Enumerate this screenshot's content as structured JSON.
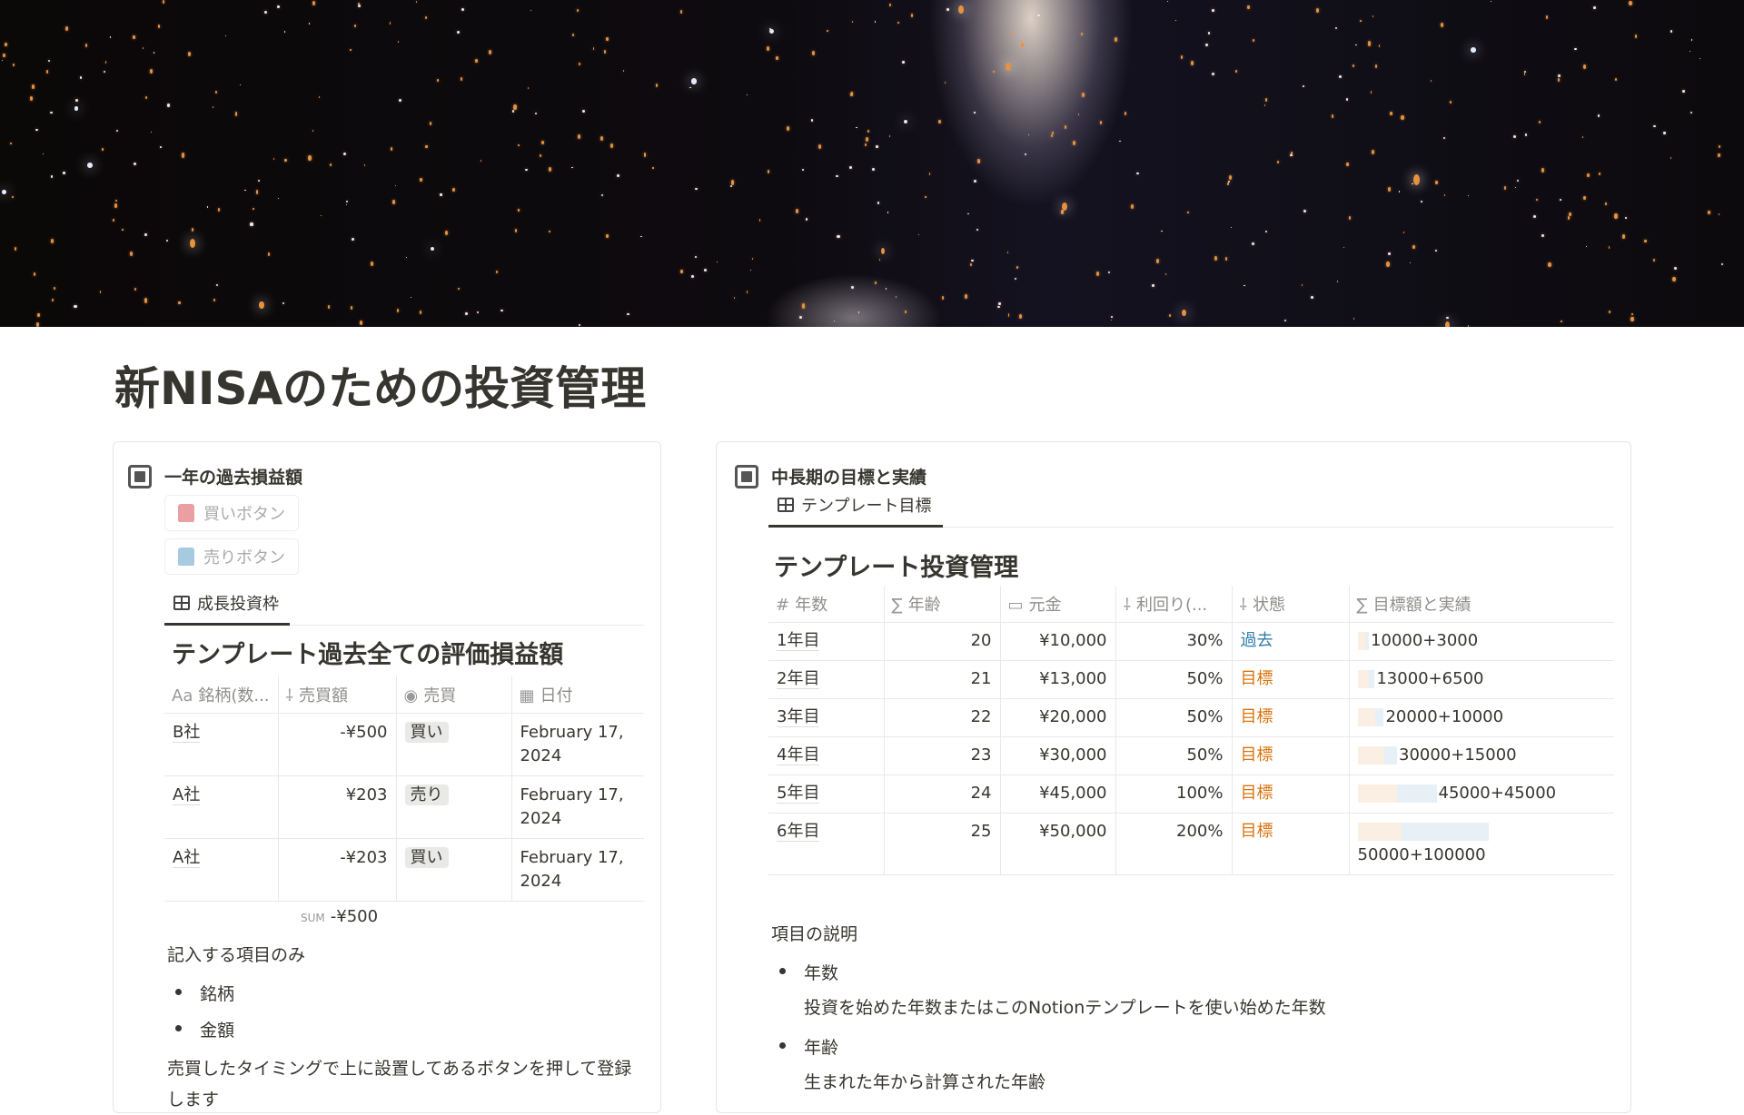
{
  "page": {
    "title": "新NISAのための投資管理"
  },
  "left": {
    "header": "一年の過去損益額",
    "buy_button": "買いボタン",
    "sell_button": "売りボタン",
    "tab": "成長投資枠",
    "db_title": "テンプレート過去全ての評価損益額",
    "columns": [
      {
        "icon": "Aa",
        "label": "銘柄(数..."
      },
      {
        "icon": "number-icon",
        "label": "売買額"
      },
      {
        "icon": "select-icon",
        "label": "売買"
      },
      {
        "icon": "calendar-icon",
        "label": "日付"
      }
    ],
    "rows": [
      {
        "name": "B社",
        "amount": "-¥500",
        "type": "買い",
        "date": "February 17, 2024"
      },
      {
        "name": "A社",
        "amount": "¥203",
        "type": "売り",
        "date": "February 17, 2024"
      },
      {
        "name": "A社",
        "amount": "-¥203",
        "type": "買い",
        "date": "February 17, 2024"
      }
    ],
    "sum_label": "SUM",
    "sum_value": "-¥500",
    "note_heading": "記入する項目のみ",
    "bullets": [
      "銘柄",
      "金額"
    ],
    "note": "売買したタイミングで上に設置してあるボタンを押して登録します"
  },
  "right": {
    "header": "中長期の目標と実績",
    "tab": "テンプレート目標",
    "db_title": "テンプレート投資管理",
    "columns": [
      {
        "icon": "#",
        "label": "年数"
      },
      {
        "icon": "∑",
        "label": "年齢"
      },
      {
        "icon": "money-icon",
        "label": "元金"
      },
      {
        "icon": "number-icon",
        "label": "利回り(..."
      },
      {
        "icon": "number-icon",
        "label": "状態"
      },
      {
        "icon": "∑",
        "label": "目標額と実績"
      }
    ],
    "rows": [
      {
        "year": "1年目",
        "age": "20",
        "principal": "¥10,000",
        "rate": "30%",
        "status": "過去",
        "goal": "10000+3000",
        "p": 10000,
        "g": 3000
      },
      {
        "year": "2年目",
        "age": "21",
        "principal": "¥13,000",
        "rate": "50%",
        "status": "目標",
        "goal": "13000+6500",
        "p": 13000,
        "g": 6500
      },
      {
        "year": "3年目",
        "age": "22",
        "principal": "¥20,000",
        "rate": "50%",
        "status": "目標",
        "goal": "20000+10000",
        "p": 20000,
        "g": 10000
      },
      {
        "year": "4年目",
        "age": "23",
        "principal": "¥30,000",
        "rate": "50%",
        "status": "目標",
        "goal": "30000+15000",
        "p": 30000,
        "g": 15000
      },
      {
        "year": "5年目",
        "age": "24",
        "principal": "¥45,000",
        "rate": "100%",
        "status": "目標",
        "goal": "45000+45000",
        "p": 45000,
        "g": 45000
      },
      {
        "year": "6年目",
        "age": "25",
        "principal": "¥50,000",
        "rate": "200%",
        "status": "目標",
        "goal": "50000+100000",
        "p": 50000,
        "g": 100000
      }
    ],
    "desc_heading": "項目の説明",
    "items": [
      {
        "label": "年数",
        "desc": "投資を始めた年数またはこのNotionテンプレートを使い始めた年数"
      },
      {
        "label": "年齢",
        "desc": "生まれた年から計算された年齢"
      }
    ]
  },
  "colors": {
    "past": "#337ea9",
    "goal": "#d9730d",
    "bar_principal": "#fbeee3",
    "bar_gain": "#e7f0f6",
    "buy_bag": "#eaa0a2",
    "sell_bag": "#a6cbe0"
  }
}
